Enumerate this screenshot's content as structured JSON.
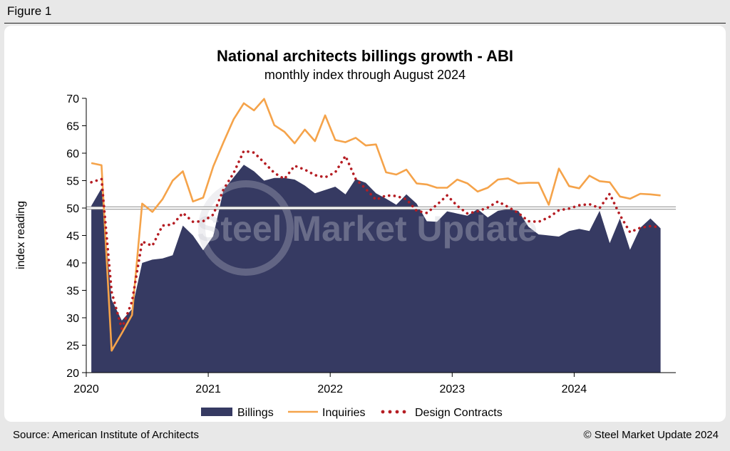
{
  "figure_label": "Figure 1",
  "footer": {
    "source": "Source: American Institute of Architects",
    "copyright": "© Steel Market Update 2024"
  },
  "watermark": "Steel Market Update",
  "colors": {
    "billings": "#363a62",
    "inquiries": "#f5a34a",
    "design_contracts": "#b51d23",
    "reference_line": "#ffffff"
  },
  "chart_data": {
    "type": "area",
    "title": "National architects billings growth - ABI",
    "subtitle": "monthly index through August 2024",
    "xlabel": "",
    "ylabel": "index reading",
    "ylim": [
      20,
      70
    ],
    "yticks": [
      20,
      25,
      30,
      35,
      40,
      45,
      50,
      55,
      60,
      65,
      70
    ],
    "xticks": [
      "2020",
      "2021",
      "2022",
      "2023",
      "2024"
    ],
    "reference_line": 50,
    "start": "2020-01",
    "end": "2024-08",
    "series": [
      {
        "name": "Billings",
        "style": "area",
        "values": [
          50.4,
          53.6,
          33.3,
          29.5,
          31.6,
          40.0,
          40.6,
          40.8,
          41.4,
          46.8,
          45.0,
          42.3,
          44.9,
          53.3,
          55.6,
          57.9,
          56.7,
          55.0,
          55.5,
          55.5,
          55.2,
          54.1,
          52.7,
          53.3,
          53.9,
          52.5,
          55.3,
          54.6,
          52.7,
          51.7,
          50.6,
          52.5,
          50.8,
          47.6,
          47.5,
          49.4,
          49.0,
          48.6,
          49.8,
          48.3,
          49.5,
          49.8,
          49.5,
          46.6,
          45.2,
          45.0,
          44.8,
          45.8,
          46.2,
          45.8,
          49.5,
          43.6,
          48.1,
          42.4,
          46.4,
          48.1,
          46.3
        ]
      },
      {
        "name": "Inquiries",
        "style": "line",
        "values": [
          58.2,
          57.8,
          24.0,
          27.2,
          30.5,
          50.8,
          49.3,
          51.6,
          55.0,
          56.7,
          51.2,
          51.9,
          57.6,
          62.0,
          66.2,
          69.1,
          67.8,
          69.9,
          65.1,
          63.9,
          61.8,
          64.3,
          62.2,
          66.9,
          62.4,
          62.0,
          62.8,
          61.4,
          61.6,
          56.5,
          56.1,
          57.0,
          54.5,
          54.3,
          53.7,
          53.7,
          55.2,
          54.5,
          53.0,
          53.7,
          55.2,
          55.4,
          54.5,
          54.6,
          54.6,
          50.6,
          57.2,
          54.0,
          53.6,
          55.9,
          54.9,
          54.7,
          52.1,
          51.7,
          52.6,
          52.5,
          52.3
        ]
      },
      {
        "name": "Design Contracts",
        "style": "dotted",
        "values": [
          54.7,
          55.3,
          34.7,
          28.0,
          33.0,
          43.9,
          43.1,
          46.8,
          47.0,
          49.1,
          47.5,
          47.6,
          48.8,
          53.4,
          56.4,
          60.4,
          60.1,
          58.3,
          56.4,
          55.3,
          57.7,
          57.0,
          56.0,
          55.6,
          56.5,
          59.5,
          55.3,
          53.5,
          51.5,
          52.3,
          52.2,
          51.6,
          49.5,
          49.1,
          50.6,
          52.3,
          50.4,
          49.0,
          49.4,
          50.1,
          51.2,
          50.2,
          49.1,
          47.6,
          47.5,
          48.3,
          49.6,
          49.9,
          50.5,
          50.7,
          50.0,
          52.6,
          48.7,
          45.6,
          46.4,
          46.7,
          46.5
        ]
      }
    ]
  }
}
